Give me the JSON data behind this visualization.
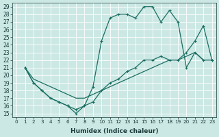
{
  "xlabel": "Humidex (Indice chaleur)",
  "xlim": [
    -0.5,
    23.5
  ],
  "ylim": [
    14.5,
    29.5
  ],
  "xticks": [
    0,
    1,
    2,
    3,
    4,
    5,
    6,
    7,
    8,
    9,
    10,
    11,
    12,
    13,
    14,
    15,
    16,
    17,
    18,
    19,
    20,
    21,
    22,
    23
  ],
  "yticks": [
    15,
    16,
    17,
    18,
    19,
    20,
    21,
    22,
    23,
    24,
    25,
    26,
    27,
    28,
    29
  ],
  "bg_color": "#cce8e4",
  "line_color": "#1a6e62",
  "line1_x": [
    1,
    2,
    3,
    4,
    5,
    6,
    7,
    8,
    9,
    10,
    11,
    12,
    13,
    14,
    15,
    16,
    17,
    18,
    19,
    20,
    21,
    22,
    23
  ],
  "line1_y": [
    21,
    19,
    18,
    17,
    16.5,
    16,
    15,
    16,
    18.5,
    24.5,
    27.5,
    28,
    28,
    27.5,
    29,
    29,
    27,
    28.5,
    27,
    21,
    23,
    22,
    22
  ],
  "line2_x": [
    1,
    2,
    3,
    4,
    5,
    6,
    7,
    8,
    9,
    10,
    11,
    12,
    13,
    14,
    15,
    16,
    17,
    18,
    19,
    20,
    21,
    22,
    23
  ],
  "line2_y": [
    21,
    19,
    18,
    17,
    16.5,
    16,
    15.5,
    16,
    16.5,
    18,
    19,
    19.5,
    20.5,
    21,
    22,
    22,
    22.5,
    22,
    22,
    23,
    24.5,
    26.5,
    22
  ],
  "line3_x": [
    1,
    2,
    3,
    4,
    5,
    6,
    7,
    8,
    9,
    10,
    11,
    12,
    13,
    14,
    15,
    16,
    17,
    18,
    19,
    20,
    21,
    22,
    23
  ],
  "line3_y": [
    21,
    19.5,
    19,
    18.5,
    18,
    17.5,
    17,
    17,
    17.5,
    18,
    18.5,
    19,
    19.5,
    20,
    20.5,
    21,
    21.5,
    22,
    22,
    22.5,
    23,
    22,
    22
  ]
}
